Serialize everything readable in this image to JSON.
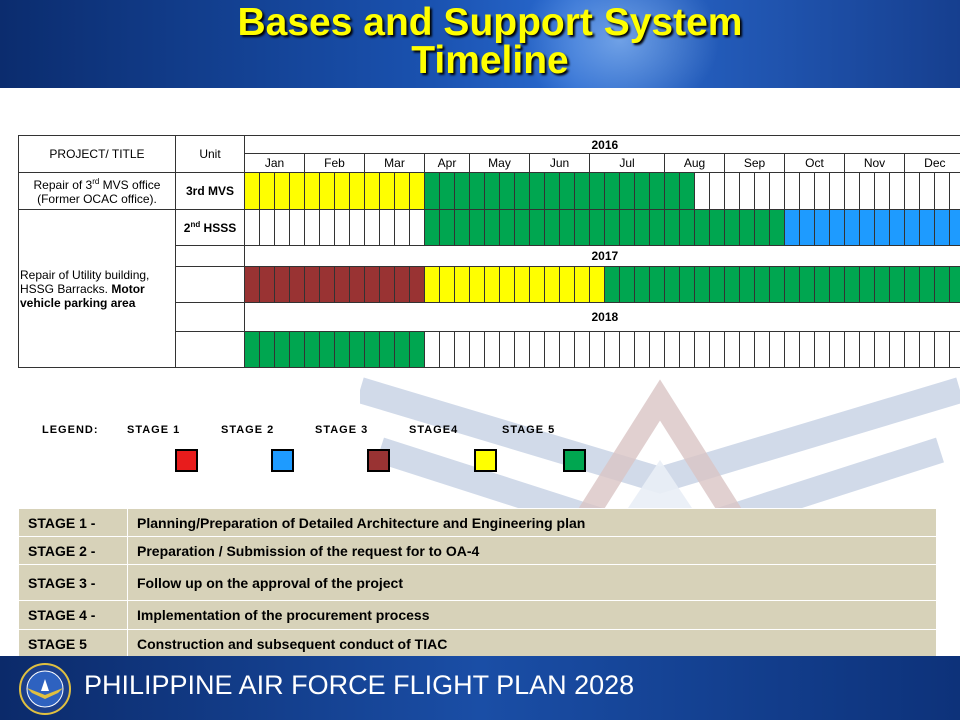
{
  "title_line1": "Bases and Support System",
  "title_line2": "Timeline",
  "gantt": {
    "header_project": "PROJECT/ TITLE",
    "header_unit": "Unit",
    "year_2016": "2016",
    "year_2017": "2017",
    "year_2018": "2018",
    "months": [
      "Jan",
      "Feb",
      "Mar",
      "Apr",
      "May",
      "Jun",
      "Jul",
      "Aug",
      "Sep",
      "Oct",
      "Nov",
      "Dec"
    ],
    "project1_line1_pre": "Repair of 3",
    "project1_sup": "rd",
    "project1_line1_post": " MVS office",
    "project1_line2": "(Former OCAC office).",
    "project1_unit": "3rd MVS",
    "project2_normal": "Repair of Utility building, HSSG Barracks.",
    "project2_bold": "Motor vehicle parking area",
    "project2_unit_pre": "2",
    "project2_unit_sup": "nd",
    "project2_unit_post": " HSSS",
    "rows": {
      "p1_2016": "YYYYYYYYYYYYGGGGGGGGGGGGGGGGGGWWWWWWWWWWWWWWWWWW",
      "p2_2016": "WWWWWWWWWWWWGGGGGGGGGGGGGGGGGGGGGGGGBBBBBBBBBBBB",
      "p2_2017": "RRRRRRRRRRRRYYYYYYYYYYYYGGGGGGGGGGGGGGGGGGGGGGGG",
      "p2_2018": "GGGGGGGGGGGGWWWWWWWWWWWWWWWWWWWWWWWWWWWWWWWWWWWW"
    }
  },
  "legend": {
    "label": "LEGEND:",
    "stage1": "STAGE  1",
    "stage2": "STAGE  2",
    "stage3": "STAGE  3",
    "stage4": "STAGE4",
    "stage5": "STAGE  5",
    "colors": [
      "#e81c1c",
      "#1e9bff",
      "#993333",
      "#ffff00",
      "#00a650"
    ]
  },
  "stages": [
    {
      "code": "STAGE 1 -",
      "desc": "Planning/Preparation of Detailed Architecture and Engineering plan"
    },
    {
      "code": "STAGE 2 -",
      "desc": "Preparation / Submission of the request for to OA-4"
    },
    {
      "code": "STAGE 3 -",
      "desc": "Follow up on the  approval of the project"
    },
    {
      "code": "STAGE 4 -",
      "desc": "Implementation of the procurement process"
    },
    {
      "code": "STAGE 5",
      "desc": "Construction and subsequent conduct of TIAC"
    }
  ],
  "footer": {
    "text": "PHILIPPINE AIR FORCE FLIGHT PLAN 2028"
  }
}
